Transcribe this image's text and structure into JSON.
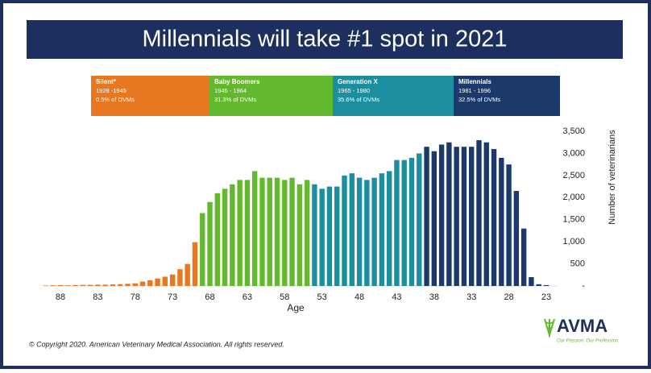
{
  "chart_data": {
    "type": "bar",
    "title": "Millennials will take #1 spot in 2021",
    "x_label": "Age",
    "y_label": "Number of veterinarians",
    "xlim": [
      90.5,
      21.5
    ],
    "ylim": [
      0,
      3500
    ],
    "xticks": [
      88,
      83,
      78,
      73,
      68,
      63,
      58,
      53,
      48,
      43,
      38,
      33,
      28,
      23
    ],
    "yticks": [
      {
        "value": 0,
        "label": "-"
      },
      {
        "value": 500,
        "label": "500"
      },
      {
        "value": 1000,
        "label": "1,000"
      },
      {
        "value": 1500,
        "label": "1,500"
      },
      {
        "value": 2000,
        "label": "2,000"
      },
      {
        "value": 2500,
        "label": "2,500"
      },
      {
        "value": 3000,
        "label": "3,000"
      },
      {
        "value": 3500,
        "label": "3,500"
      }
    ],
    "series": [
      {
        "name": "Silent*",
        "years": "1928 -1945",
        "share": "0.5% of DVMs",
        "color": "#e87722",
        "x": [
          90,
          89,
          88,
          87,
          86,
          85,
          84,
          83,
          82,
          81,
          80,
          79,
          78,
          77,
          76,
          75,
          74,
          73,
          72,
          71,
          70
        ],
        "values": [
          10,
          15,
          20,
          15,
          20,
          25,
          25,
          30,
          30,
          35,
          40,
          50,
          60,
          100,
          130,
          170,
          210,
          260,
          380,
          500,
          990
        ]
      },
      {
        "name": "Baby Boomers",
        "years": "1946 - 1964",
        "share": "31.3% of DVMs",
        "color": "#63b92e",
        "x": [
          69,
          68,
          67,
          66,
          65,
          64,
          63,
          62,
          61,
          60,
          59,
          58,
          57,
          56,
          55
        ],
        "values": [
          1650,
          1900,
          2100,
          2200,
          2300,
          2400,
          2400,
          2600,
          2450,
          2450,
          2450,
          2400,
          2450,
          2300,
          2400
        ]
      },
      {
        "name": "Generation X",
        "years": "1965 - 1980",
        "share": "35.6% of DVMs",
        "color": "#1b8fa0",
        "x": [
          54,
          53,
          52,
          51,
          50,
          49,
          48,
          47,
          46,
          45,
          44,
          43,
          42,
          41,
          40
        ],
        "values": [
          2300,
          2200,
          2250,
          2250,
          2500,
          2550,
          2450,
          2400,
          2450,
          2550,
          2600,
          2850,
          2850,
          2900,
          3000
        ]
      },
      {
        "name": "Millennials",
        "years": "1981 - 1996",
        "share": "32.5% of DVMs",
        "color": "#1b3a6b",
        "x": [
          39,
          38,
          37,
          36,
          35,
          34,
          33,
          32,
          31,
          30,
          29,
          28,
          27,
          26,
          25,
          24,
          23
        ],
        "values": [
          3150,
          3050,
          3200,
          3250,
          3150,
          3150,
          3150,
          3300,
          3250,
          3100,
          2900,
          2750,
          2150,
          1300,
          200,
          40,
          20
        ]
      }
    ]
  },
  "footer": {
    "copyright": "© Copyright 2020. American Veterinary Medical Association. All rights reserved."
  },
  "logo": {
    "name": "AVMA",
    "tagline": "Our Passion. Our Profession."
  }
}
